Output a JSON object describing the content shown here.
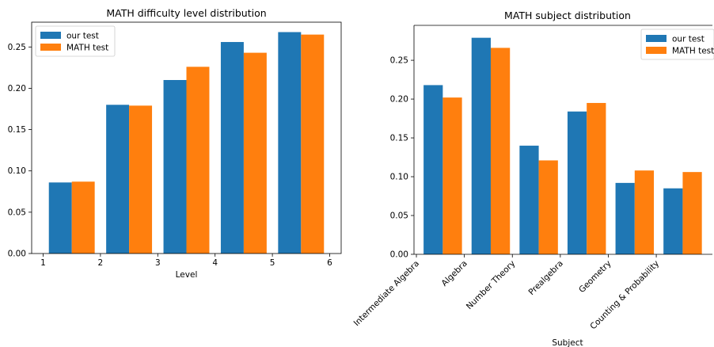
{
  "colors": {
    "our_test": "#1f77b4",
    "math_test": "#ff7f0e"
  },
  "chart_data": [
    {
      "type": "bar",
      "title": "MATH difficulty level distribution",
      "xlabel": "Level",
      "ylabel": "",
      "xlim": [
        0.8,
        6.2
      ],
      "ylim": [
        0,
        0.28
      ],
      "xticks": [
        1,
        2,
        3,
        4,
        5,
        6
      ],
      "xtick_labels": [
        "1",
        "2",
        "3",
        "4",
        "5",
        "6"
      ],
      "yticks": [
        0.0,
        0.05,
        0.1,
        0.15,
        0.2,
        0.25
      ],
      "ytick_labels": [
        "0.00",
        "0.05",
        "0.10",
        "0.15",
        "0.20",
        "0.25"
      ],
      "bar_centers": [
        1.5,
        2.5,
        3.5,
        4.5,
        5.5
      ],
      "legend": "top-left",
      "grid": false,
      "series": [
        {
          "name": "our test",
          "values": [
            0.086,
            0.18,
            0.21,
            0.256,
            0.268
          ]
        },
        {
          "name": "MATH test",
          "values": [
            0.087,
            0.179,
            0.226,
            0.243,
            0.265
          ]
        }
      ]
    },
    {
      "type": "bar",
      "title": "MATH subject distribution",
      "xlabel": "Subject",
      "ylabel": "",
      "ylim": [
        0,
        0.295
      ],
      "categories": [
        "Intermediate Algebra",
        "Algebra",
        "Number Theory",
        "Prealgebra",
        "Geometry",
        "Counting & Probability"
      ],
      "yticks": [
        0.0,
        0.05,
        0.1,
        0.15,
        0.2,
        0.25
      ],
      "ytick_labels": [
        "0.00",
        "0.05",
        "0.10",
        "0.15",
        "0.20",
        "0.25"
      ],
      "legend": "top-right",
      "grid": false,
      "series": [
        {
          "name": "our test",
          "values": [
            0.218,
            0.279,
            0.14,
            0.184,
            0.092,
            0.085
          ]
        },
        {
          "name": "MATH test",
          "values": [
            0.202,
            0.266,
            0.121,
            0.195,
            0.108,
            0.106
          ]
        }
      ]
    }
  ]
}
